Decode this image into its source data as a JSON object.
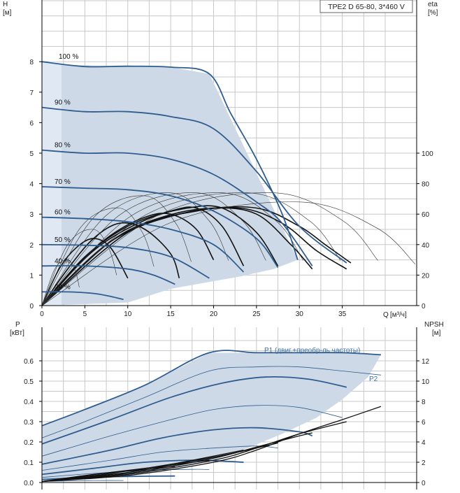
{
  "chart_data": [
    {
      "type": "line",
      "title": "TPE2 D 65-80, 3*460 V",
      "y_label": "H",
      "y_unit": "[м]",
      "y2_label": "eta",
      "y2_unit": "[%]",
      "x_label": "Q",
      "x_unit": "[м³/ч]",
      "xlim": [
        0,
        40
      ],
      "ylim": [
        0,
        10
      ],
      "y2lim": [
        0,
        160
      ],
      "x_ticks": [
        0,
        5,
        10,
        15,
        20,
        25,
        30,
        35
      ],
      "y_ticks": [
        0,
        1,
        2,
        3,
        4,
        5,
        6,
        7,
        8
      ],
      "y2_ticks": [
        0,
        20,
        40,
        60,
        80,
        100
      ],
      "grid": true,
      "operating_area": [
        [
          0,
          0
        ],
        [
          0,
          8
        ],
        [
          2.4,
          7.9
        ],
        [
          10,
          7.85
        ],
        [
          15,
          7.82
        ],
        [
          19.5,
          7.6
        ],
        [
          29.8,
          1.5
        ],
        [
          27,
          1.2
        ],
        [
          23,
          0.95
        ],
        [
          19,
          0.75
        ],
        [
          15,
          0.55
        ],
        [
          10,
          0.1
        ],
        [
          0,
          0
        ]
      ],
      "speed_curves": [
        {
          "label": "100 %",
          "points": [
            [
              0,
              8.0
            ],
            [
              5,
              7.84
            ],
            [
              10,
              7.85
            ],
            [
              15,
              7.82
            ],
            [
              19.5,
              7.6
            ],
            [
              22,
              6.3
            ],
            [
              25,
              4.8
            ],
            [
              28,
              3.0
            ],
            [
              29.8,
              1.5
            ]
          ]
        },
        {
          "label": "90 %",
          "points": [
            [
              0,
              6.5
            ],
            [
              5,
              6.36
            ],
            [
              10,
              6.36
            ],
            [
              15,
              6.2
            ],
            [
              20,
              5.8
            ],
            [
              25,
              4.4
            ],
            [
              30,
              2.6
            ],
            [
              35.5,
              1.4
            ]
          ]
        },
        {
          "label": "80 %",
          "points": [
            [
              0,
              5.1
            ],
            [
              5,
              5.0
            ],
            [
              10,
              5.0
            ],
            [
              15,
              4.8
            ],
            [
              20,
              4.3
            ],
            [
              25,
              3.4
            ],
            [
              28,
              2.7
            ],
            [
              31.5,
              1.3
            ]
          ]
        },
        {
          "label": "70 %",
          "points": [
            [
              0,
              3.9
            ],
            [
              5,
              3.85
            ],
            [
              10,
              3.8
            ],
            [
              15,
              3.6
            ],
            [
              20,
              3.1
            ],
            [
              25,
              2.2
            ],
            [
              27.5,
              1.25
            ]
          ]
        },
        {
          "label": "60 %",
          "points": [
            [
              0,
              2.9
            ],
            [
              5,
              2.85
            ],
            [
              10,
              2.75
            ],
            [
              15,
              2.5
            ],
            [
              20,
              2.0
            ],
            [
              23.5,
              1.1
            ]
          ]
        },
        {
          "label": "50 %",
          "points": [
            [
              0,
              2.0
            ],
            [
              5,
              1.98
            ],
            [
              10,
              1.9
            ],
            [
              15,
              1.6
            ],
            [
              19.5,
              0.9
            ]
          ]
        },
        {
          "label": "40 %",
          "points": [
            [
              0,
              1.3
            ],
            [
              5,
              1.3
            ],
            [
              10,
              1.2
            ],
            [
              13,
              1.0
            ],
            [
              15.5,
              0.7
            ]
          ]
        },
        {
          "label": "24 %",
          "points": [
            [
              0,
              0.45
            ],
            [
              3,
              0.45
            ],
            [
              6,
              0.4
            ],
            [
              8,
              0.3
            ],
            [
              9.5,
              0.2
            ]
          ]
        }
      ],
      "efficiency_curves": [
        {
          "points": [
            [
              0,
              0
            ],
            [
              2,
              1.2
            ],
            [
              4,
              1.9
            ],
            [
              6,
              2.2
            ],
            [
              8,
              1.9
            ],
            [
              10,
              0.9
            ]
          ]
        },
        {
          "points": [
            [
              0,
              0
            ],
            [
              3,
              1.2
            ],
            [
              6,
              2.2
            ],
            [
              9,
              2.7
            ],
            [
              12,
              2.5
            ],
            [
              15,
              1.7
            ],
            [
              16,
              0.9
            ]
          ]
        },
        {
          "points": [
            [
              0,
              0
            ],
            [
              4,
              1.3
            ],
            [
              8,
              2.3
            ],
            [
              12,
              2.9
            ],
            [
              15,
              3.0
            ],
            [
              18,
              2.5
            ],
            [
              20,
              1.5
            ]
          ]
        },
        {
          "points": [
            [
              0,
              0
            ],
            [
              5,
              1.6
            ],
            [
              10,
              2.6
            ],
            [
              15,
              3.1
            ],
            [
              18,
              3.2
            ],
            [
              21,
              2.6
            ],
            [
              23.5,
              1.3
            ]
          ]
        },
        {
          "points": [
            [
              0,
              0
            ],
            [
              6,
              1.8
            ],
            [
              12,
              2.8
            ],
            [
              17,
              3.2
            ],
            [
              21,
              3.2
            ],
            [
              25,
              2.4
            ],
            [
              27.5,
              1.3
            ]
          ]
        },
        {
          "points": [
            [
              0,
              0
            ],
            [
              8,
              2.1
            ],
            [
              14,
              2.9
            ],
            [
              20,
              3.2
            ],
            [
              25,
              3.0
            ],
            [
              29,
              2.0
            ],
            [
              31.5,
              1.2
            ]
          ]
        },
        {
          "points": [
            [
              0,
              0
            ],
            [
              8,
              2.1
            ],
            [
              16,
              3.0
            ],
            [
              23,
              3.2
            ],
            [
              28,
              2.7
            ],
            [
              32,
              1.8
            ],
            [
              35.5,
              1.2
            ]
          ]
        },
        {
          "points": [
            [
              0,
              0
            ],
            [
              10,
              2.4
            ],
            [
              18,
              3.1
            ],
            [
              25,
              3.2
            ],
            [
              30,
              2.6
            ],
            [
              33,
              2.0
            ],
            [
              36,
              1.4
            ]
          ]
        }
      ]
    },
    {
      "type": "line",
      "y_label": "P",
      "y_unit": "[кВт]",
      "y2_label": "NPSH",
      "y2_unit": "[м]",
      "xlim": [
        0,
        40
      ],
      "ylim": [
        0,
        0.7
      ],
      "y2lim": [
        0,
        14
      ],
      "y_ticks": [
        0.0,
        0.1,
        0.2,
        0.3,
        0.4,
        0.5,
        0.6
      ],
      "y2_ticks": [
        0,
        2,
        4,
        6,
        8,
        10,
        12
      ],
      "grid": true,
      "annotations": [
        "P1 (двиг.+преобр-ль частоты)",
        "P2"
      ],
      "power_area": [
        [
          0,
          0.28
        ],
        [
          2,
          0.31
        ],
        [
          12,
          0.48
        ],
        [
          19.5,
          0.64
        ],
        [
          25,
          0.64
        ],
        [
          30,
          0.64
        ],
        [
          35,
          0.64
        ],
        [
          39.5,
          0.63
        ],
        [
          38,
          0.52
        ],
        [
          35,
          0.41
        ],
        [
          32,
          0.32
        ],
        [
          28,
          0.24
        ],
        [
          24,
          0.17
        ],
        [
          20,
          0.11
        ],
        [
          15,
          0.07
        ],
        [
          10,
          0.04
        ],
        [
          5,
          0.02
        ],
        [
          0,
          0.01
        ]
      ],
      "power_curves": [
        {
          "name": "P1",
          "points": [
            [
              0,
              0.28
            ],
            [
              5,
              0.36
            ],
            [
              12,
              0.48
            ],
            [
              19.5,
              0.64
            ],
            [
              25,
              0.64
            ],
            [
              30,
              0.64
            ],
            [
              35,
              0.64
            ],
            [
              39.5,
              0.63
            ]
          ]
        },
        {
          "name": "P2",
          "points": [
            [
              0,
              0.22
            ],
            [
              5,
              0.3
            ],
            [
              12,
              0.42
            ],
            [
              19.5,
              0.55
            ],
            [
              25,
              0.57
            ],
            [
              30,
              0.57
            ],
            [
              35,
              0.55
            ],
            [
              39.5,
              0.53
            ]
          ]
        },
        {
          "points": [
            [
              0,
              0.19
            ],
            [
              8,
              0.31
            ],
            [
              15,
              0.42
            ],
            [
              21,
              0.49
            ],
            [
              26,
              0.52
            ],
            [
              31,
              0.51
            ],
            [
              35.5,
              0.47
            ]
          ]
        },
        {
          "points": [
            [
              0,
              0.13
            ],
            [
              8,
              0.23
            ],
            [
              15,
              0.31
            ],
            [
              20,
              0.36
            ],
            [
              25,
              0.38
            ],
            [
              30,
              0.37
            ],
            [
              35,
              0.32
            ]
          ]
        },
        {
          "points": [
            [
              0,
              0.09
            ],
            [
              8,
              0.16
            ],
            [
              14,
              0.22
            ],
            [
              20,
              0.26
            ],
            [
              25,
              0.27
            ],
            [
              30,
              0.25
            ],
            [
              31.5,
              0.23
            ]
          ]
        },
        {
          "points": [
            [
              0,
              0.06
            ],
            [
              8,
              0.11
            ],
            [
              14,
              0.15
            ],
            [
              20,
              0.17
            ],
            [
              25,
              0.18
            ],
            [
              27.5,
              0.17
            ]
          ]
        },
        {
          "points": [
            [
              0,
              0.04
            ],
            [
              6,
              0.07
            ],
            [
              12,
              0.1
            ],
            [
              18,
              0.11
            ],
            [
              23.5,
              0.1
            ]
          ]
        },
        {
          "points": [
            [
              0,
              0.025
            ],
            [
              6,
              0.045
            ],
            [
              12,
              0.06
            ],
            [
              18,
              0.065
            ],
            [
              19.5,
              0.063
            ]
          ]
        },
        {
          "points": [
            [
              0,
              0.015
            ],
            [
              5,
              0.025
            ],
            [
              10,
              0.03
            ],
            [
              15.5,
              0.032
            ]
          ]
        },
        {
          "points": [
            [
              0,
              0.005
            ],
            [
              3,
              0.008
            ],
            [
              6,
              0.01
            ],
            [
              9.5,
              0.01
            ]
          ]
        }
      ],
      "npsh_curves": [
        {
          "points": [
            [
              0,
              0.1
            ],
            [
              10,
              0.7
            ],
            [
              20,
              2.0
            ],
            [
              25,
              3.2
            ],
            [
              30,
              4.8
            ],
            [
              35,
              6.2
            ],
            [
              39.5,
              7.5
            ]
          ]
        },
        {
          "points": [
            [
              0,
              0.1
            ],
            [
              10,
              0.8
            ],
            [
              20,
              2.2
            ],
            [
              25,
              3.4
            ],
            [
              30,
              4.8
            ],
            [
              35.5,
              6.0
            ]
          ]
        },
        {
          "points": [
            [
              0,
              0.1
            ],
            [
              10,
              0.9
            ],
            [
              20,
              2.4
            ],
            [
              25,
              3.5
            ],
            [
              30,
              4.6
            ],
            [
              31.5,
              4.9
            ]
          ]
        },
        {
          "points": [
            [
              0,
              0.1
            ],
            [
              10,
              1.0
            ],
            [
              20,
              2.5
            ],
            [
              25,
              3.4
            ],
            [
              27.5,
              3.9
            ]
          ]
        },
        {
          "points": [
            [
              0,
              0.1
            ],
            [
              8,
              0.9
            ],
            [
              15,
              1.8
            ],
            [
              20,
              2.6
            ],
            [
              23.5,
              3.2
            ]
          ]
        },
        {
          "points": [
            [
              0,
              0.1
            ],
            [
              8,
              1.0
            ],
            [
              14,
              1.6
            ],
            [
              19.5,
              2.2
            ]
          ]
        },
        {
          "points": [
            [
              0,
              0.1
            ],
            [
              6,
              0.8
            ],
            [
              12,
              1.3
            ],
            [
              15.5,
              1.6
            ]
          ]
        },
        {
          "points": [
            [
              0,
              0.1
            ],
            [
              4,
              0.5
            ],
            [
              8,
              0.8
            ],
            [
              9.5,
              0.9
            ]
          ]
        }
      ]
    }
  ]
}
